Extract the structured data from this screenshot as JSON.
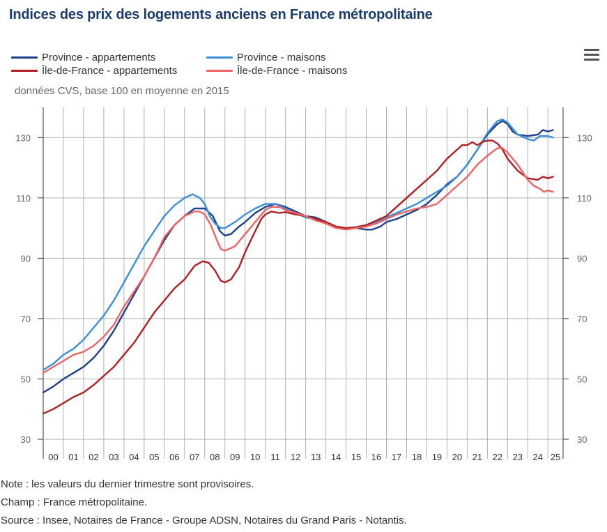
{
  "title": "Indices des prix des logements anciens en France métropolitaine",
  "subtitle": "données CVS, base 100 en moyenne en 2015",
  "notes": {
    "note": "Note : les valeurs du dernier trimestre sont provisoires.",
    "champ": "Champ : France métropolitaine.",
    "source": "Source : Insee, Notaires de France - Groupe ADSN, Notaires du Grand Paris - Notantis."
  },
  "colors": {
    "province_appartements": "#1f3e8c",
    "province_maisons": "#3a8fdc",
    "idf_appartements": "#b01f24",
    "idf_maisons": "#ee6464",
    "grid": "#b0b0b0",
    "axis": "#333333"
  },
  "menu_icon": "hamburger-menu-icon",
  "chart_data": {
    "type": "line",
    "ylim": [
      30,
      140
    ],
    "y_ticks": [
      30,
      50,
      70,
      90,
      110,
      130
    ],
    "y_tick_labels": [
      "30",
      "50",
      "70",
      "90",
      "110",
      "130"
    ],
    "x_start_year": 2000,
    "x_end_year": 2025.75,
    "x_tick_labels": [
      "00",
      "01",
      "02",
      "03",
      "04",
      "05",
      "06",
      "07",
      "08",
      "09",
      "10",
      "11",
      "12",
      "13",
      "14",
      "15",
      "16",
      "17",
      "18",
      "19",
      "20",
      "21",
      "22",
      "23",
      "24",
      "25"
    ],
    "grid": true,
    "legend_placement": "top-left",
    "series": [
      {
        "name": "Province - appartements",
        "color_key": "province_appartements",
        "points": [
          [
            2000,
            45.5
          ],
          [
            2000.5,
            47.5
          ],
          [
            2001,
            50
          ],
          [
            2001.5,
            52
          ],
          [
            2002,
            54
          ],
          [
            2002.5,
            57
          ],
          [
            2003,
            61
          ],
          [
            2003.5,
            66
          ],
          [
            2004,
            72
          ],
          [
            2004.5,
            78
          ],
          [
            2005,
            84
          ],
          [
            2005.5,
            90
          ],
          [
            2006,
            96
          ],
          [
            2006.5,
            101
          ],
          [
            2007,
            104
          ],
          [
            2007.5,
            106.5
          ],
          [
            2008,
            106.5
          ],
          [
            2008.4,
            104
          ],
          [
            2008.75,
            99
          ],
          [
            2009,
            97.5
          ],
          [
            2009.3,
            98
          ],
          [
            2009.7,
            100.5
          ],
          [
            2010,
            102
          ],
          [
            2010.5,
            105
          ],
          [
            2011,
            107
          ],
          [
            2011.5,
            108
          ],
          [
            2012,
            107
          ],
          [
            2012.5,
            105.5
          ],
          [
            2013,
            104
          ],
          [
            2013.5,
            103.5
          ],
          [
            2014,
            102
          ],
          [
            2014.5,
            100.5
          ],
          [
            2015,
            100
          ],
          [
            2015.5,
            100
          ],
          [
            2016,
            99.5
          ],
          [
            2016.3,
            99.5
          ],
          [
            2016.7,
            100.5
          ],
          [
            2017,
            102
          ],
          [
            2017.5,
            103
          ],
          [
            2018,
            104.5
          ],
          [
            2018.5,
            106
          ],
          [
            2019,
            108
          ],
          [
            2019.5,
            111
          ],
          [
            2020,
            114.5
          ],
          [
            2020.5,
            117
          ],
          [
            2021,
            121
          ],
          [
            2021.5,
            126
          ],
          [
            2022,
            131
          ],
          [
            2022.5,
            134.5
          ],
          [
            2022.75,
            135.5
          ],
          [
            2023,
            134.5
          ],
          [
            2023.25,
            132
          ],
          [
            2023.5,
            131
          ],
          [
            2024,
            130.5
          ],
          [
            2024.5,
            131
          ],
          [
            2024.75,
            132.5
          ],
          [
            2025,
            132
          ],
          [
            2025.25,
            132.5
          ]
        ]
      },
      {
        "name": "Province - maisons",
        "color_key": "province_maisons",
        "points": [
          [
            2000,
            53
          ],
          [
            2000.5,
            55
          ],
          [
            2001,
            58
          ],
          [
            2001.5,
            60
          ],
          [
            2002,
            63
          ],
          [
            2002.5,
            67
          ],
          [
            2003,
            71
          ],
          [
            2003.5,
            76
          ],
          [
            2004,
            82
          ],
          [
            2004.5,
            88
          ],
          [
            2005,
            94
          ],
          [
            2005.5,
            99
          ],
          [
            2006,
            104
          ],
          [
            2006.5,
            107.5
          ],
          [
            2007,
            110
          ],
          [
            2007.4,
            111.2
          ],
          [
            2007.75,
            110
          ],
          [
            2008,
            108
          ],
          [
            2008.25,
            104
          ],
          [
            2008.5,
            101.5
          ],
          [
            2008.8,
            100
          ],
          [
            2009,
            100
          ],
          [
            2009.5,
            102
          ],
          [
            2010,
            104.5
          ],
          [
            2010.5,
            106.5
          ],
          [
            2011,
            108
          ],
          [
            2011.5,
            108
          ],
          [
            2012,
            106.5
          ],
          [
            2012.5,
            105
          ],
          [
            2013,
            103.5
          ],
          [
            2013.5,
            103
          ],
          [
            2014,
            101.5
          ],
          [
            2014.5,
            100.3
          ],
          [
            2015,
            100
          ],
          [
            2015.5,
            100.3
          ],
          [
            2016,
            101
          ],
          [
            2016.5,
            102
          ],
          [
            2017,
            103.5
          ],
          [
            2017.5,
            105
          ],
          [
            2018,
            106.5
          ],
          [
            2018.5,
            108
          ],
          [
            2019,
            110
          ],
          [
            2019.5,
            112
          ],
          [
            2020,
            114
          ],
          [
            2020.5,
            117
          ],
          [
            2021,
            121
          ],
          [
            2021.5,
            126
          ],
          [
            2022,
            131.5
          ],
          [
            2022.5,
            135.5
          ],
          [
            2022.75,
            136
          ],
          [
            2023,
            135
          ],
          [
            2023.25,
            133
          ],
          [
            2023.5,
            131
          ],
          [
            2024,
            129.5
          ],
          [
            2024.3,
            129
          ],
          [
            2024.6,
            130.5
          ],
          [
            2025,
            130.5
          ],
          [
            2025.25,
            130
          ]
        ]
      },
      {
        "name": "Île-de-France - appartements",
        "color_key": "idf_appartements",
        "points": [
          [
            2000,
            38.5
          ],
          [
            2000.5,
            40
          ],
          [
            2001,
            42
          ],
          [
            2001.5,
            44
          ],
          [
            2002,
            45.5
          ],
          [
            2002.5,
            48
          ],
          [
            2003,
            51
          ],
          [
            2003.5,
            54
          ],
          [
            2004,
            58
          ],
          [
            2004.5,
            62
          ],
          [
            2005,
            67
          ],
          [
            2005.5,
            72
          ],
          [
            2006,
            76
          ],
          [
            2006.5,
            80
          ],
          [
            2007,
            83
          ],
          [
            2007.5,
            87.5
          ],
          [
            2007.9,
            89
          ],
          [
            2008.2,
            88.5
          ],
          [
            2008.5,
            86
          ],
          [
            2008.8,
            82.5
          ],
          [
            2009,
            82
          ],
          [
            2009.3,
            83
          ],
          [
            2009.7,
            87
          ],
          [
            2010,
            92
          ],
          [
            2010.5,
            99
          ],
          [
            2010.8,
            103
          ],
          [
            2011,
            104.5
          ],
          [
            2011.3,
            105.5
          ],
          [
            2011.7,
            105
          ],
          [
            2012,
            105.3
          ],
          [
            2012.5,
            104.5
          ],
          [
            2013,
            104
          ],
          [
            2013.5,
            103
          ],
          [
            2014,
            102
          ],
          [
            2014.5,
            100.5
          ],
          [
            2015,
            100
          ],
          [
            2015.5,
            100.3
          ],
          [
            2016,
            101
          ],
          [
            2016.5,
            102.5
          ],
          [
            2017,
            104
          ],
          [
            2017.5,
            107
          ],
          [
            2018,
            110
          ],
          [
            2018.5,
            113
          ],
          [
            2019,
            116
          ],
          [
            2019.5,
            119
          ],
          [
            2020,
            123
          ],
          [
            2020.5,
            126
          ],
          [
            2020.75,
            127.5
          ],
          [
            2021,
            127.5
          ],
          [
            2021.25,
            128.5
          ],
          [
            2021.5,
            127.5
          ],
          [
            2021.75,
            128.5
          ],
          [
            2022,
            129
          ],
          [
            2022.25,
            129
          ],
          [
            2022.5,
            128
          ],
          [
            2022.75,
            126
          ],
          [
            2023,
            123
          ],
          [
            2023.5,
            119
          ],
          [
            2024,
            116.5
          ],
          [
            2024.5,
            116
          ],
          [
            2024.75,
            117
          ],
          [
            2025,
            116.5
          ],
          [
            2025.25,
            117
          ]
        ]
      },
      {
        "name": "Île-de-France - maisons",
        "color_key": "idf_maisons",
        "points": [
          [
            2000,
            52
          ],
          [
            2000.5,
            54
          ],
          [
            2001,
            56
          ],
          [
            2001.5,
            58
          ],
          [
            2002,
            59
          ],
          [
            2002.5,
            61
          ],
          [
            2003,
            64
          ],
          [
            2003.5,
            68
          ],
          [
            2004,
            74
          ],
          [
            2004.5,
            79
          ],
          [
            2005,
            84
          ],
          [
            2005.5,
            90
          ],
          [
            2006,
            97
          ],
          [
            2006.5,
            101
          ],
          [
            2007,
            104
          ],
          [
            2007.5,
            105.5
          ],
          [
            2007.75,
            105.5
          ],
          [
            2008,
            104.5
          ],
          [
            2008.3,
            101
          ],
          [
            2008.6,
            96
          ],
          [
            2008.8,
            93
          ],
          [
            2009,
            92.5
          ],
          [
            2009.5,
            94
          ],
          [
            2010,
            98
          ],
          [
            2010.5,
            102
          ],
          [
            2011,
            106
          ],
          [
            2011.3,
            107
          ],
          [
            2011.7,
            107
          ],
          [
            2012,
            106
          ],
          [
            2012.5,
            105
          ],
          [
            2013,
            104
          ],
          [
            2013.5,
            102.5
          ],
          [
            2014,
            101.5
          ],
          [
            2014.5,
            100
          ],
          [
            2015,
            99.5
          ],
          [
            2015.5,
            100
          ],
          [
            2016,
            100.5
          ],
          [
            2016.5,
            101.5
          ],
          [
            2017,
            103
          ],
          [
            2017.5,
            104.5
          ],
          [
            2018,
            105.5
          ],
          [
            2018.5,
            106.5
          ],
          [
            2019,
            107
          ],
          [
            2019.5,
            108
          ],
          [
            2020,
            111
          ],
          [
            2020.5,
            114
          ],
          [
            2021,
            117
          ],
          [
            2021.5,
            121
          ],
          [
            2022,
            124
          ],
          [
            2022.5,
            126.5
          ],
          [
            2022.75,
            126.5
          ],
          [
            2023,
            125
          ],
          [
            2023.5,
            121
          ],
          [
            2024,
            116
          ],
          [
            2024.3,
            114
          ],
          [
            2024.6,
            113
          ],
          [
            2024.8,
            112
          ],
          [
            2025,
            112.5
          ],
          [
            2025.25,
            112
          ]
        ]
      }
    ]
  }
}
